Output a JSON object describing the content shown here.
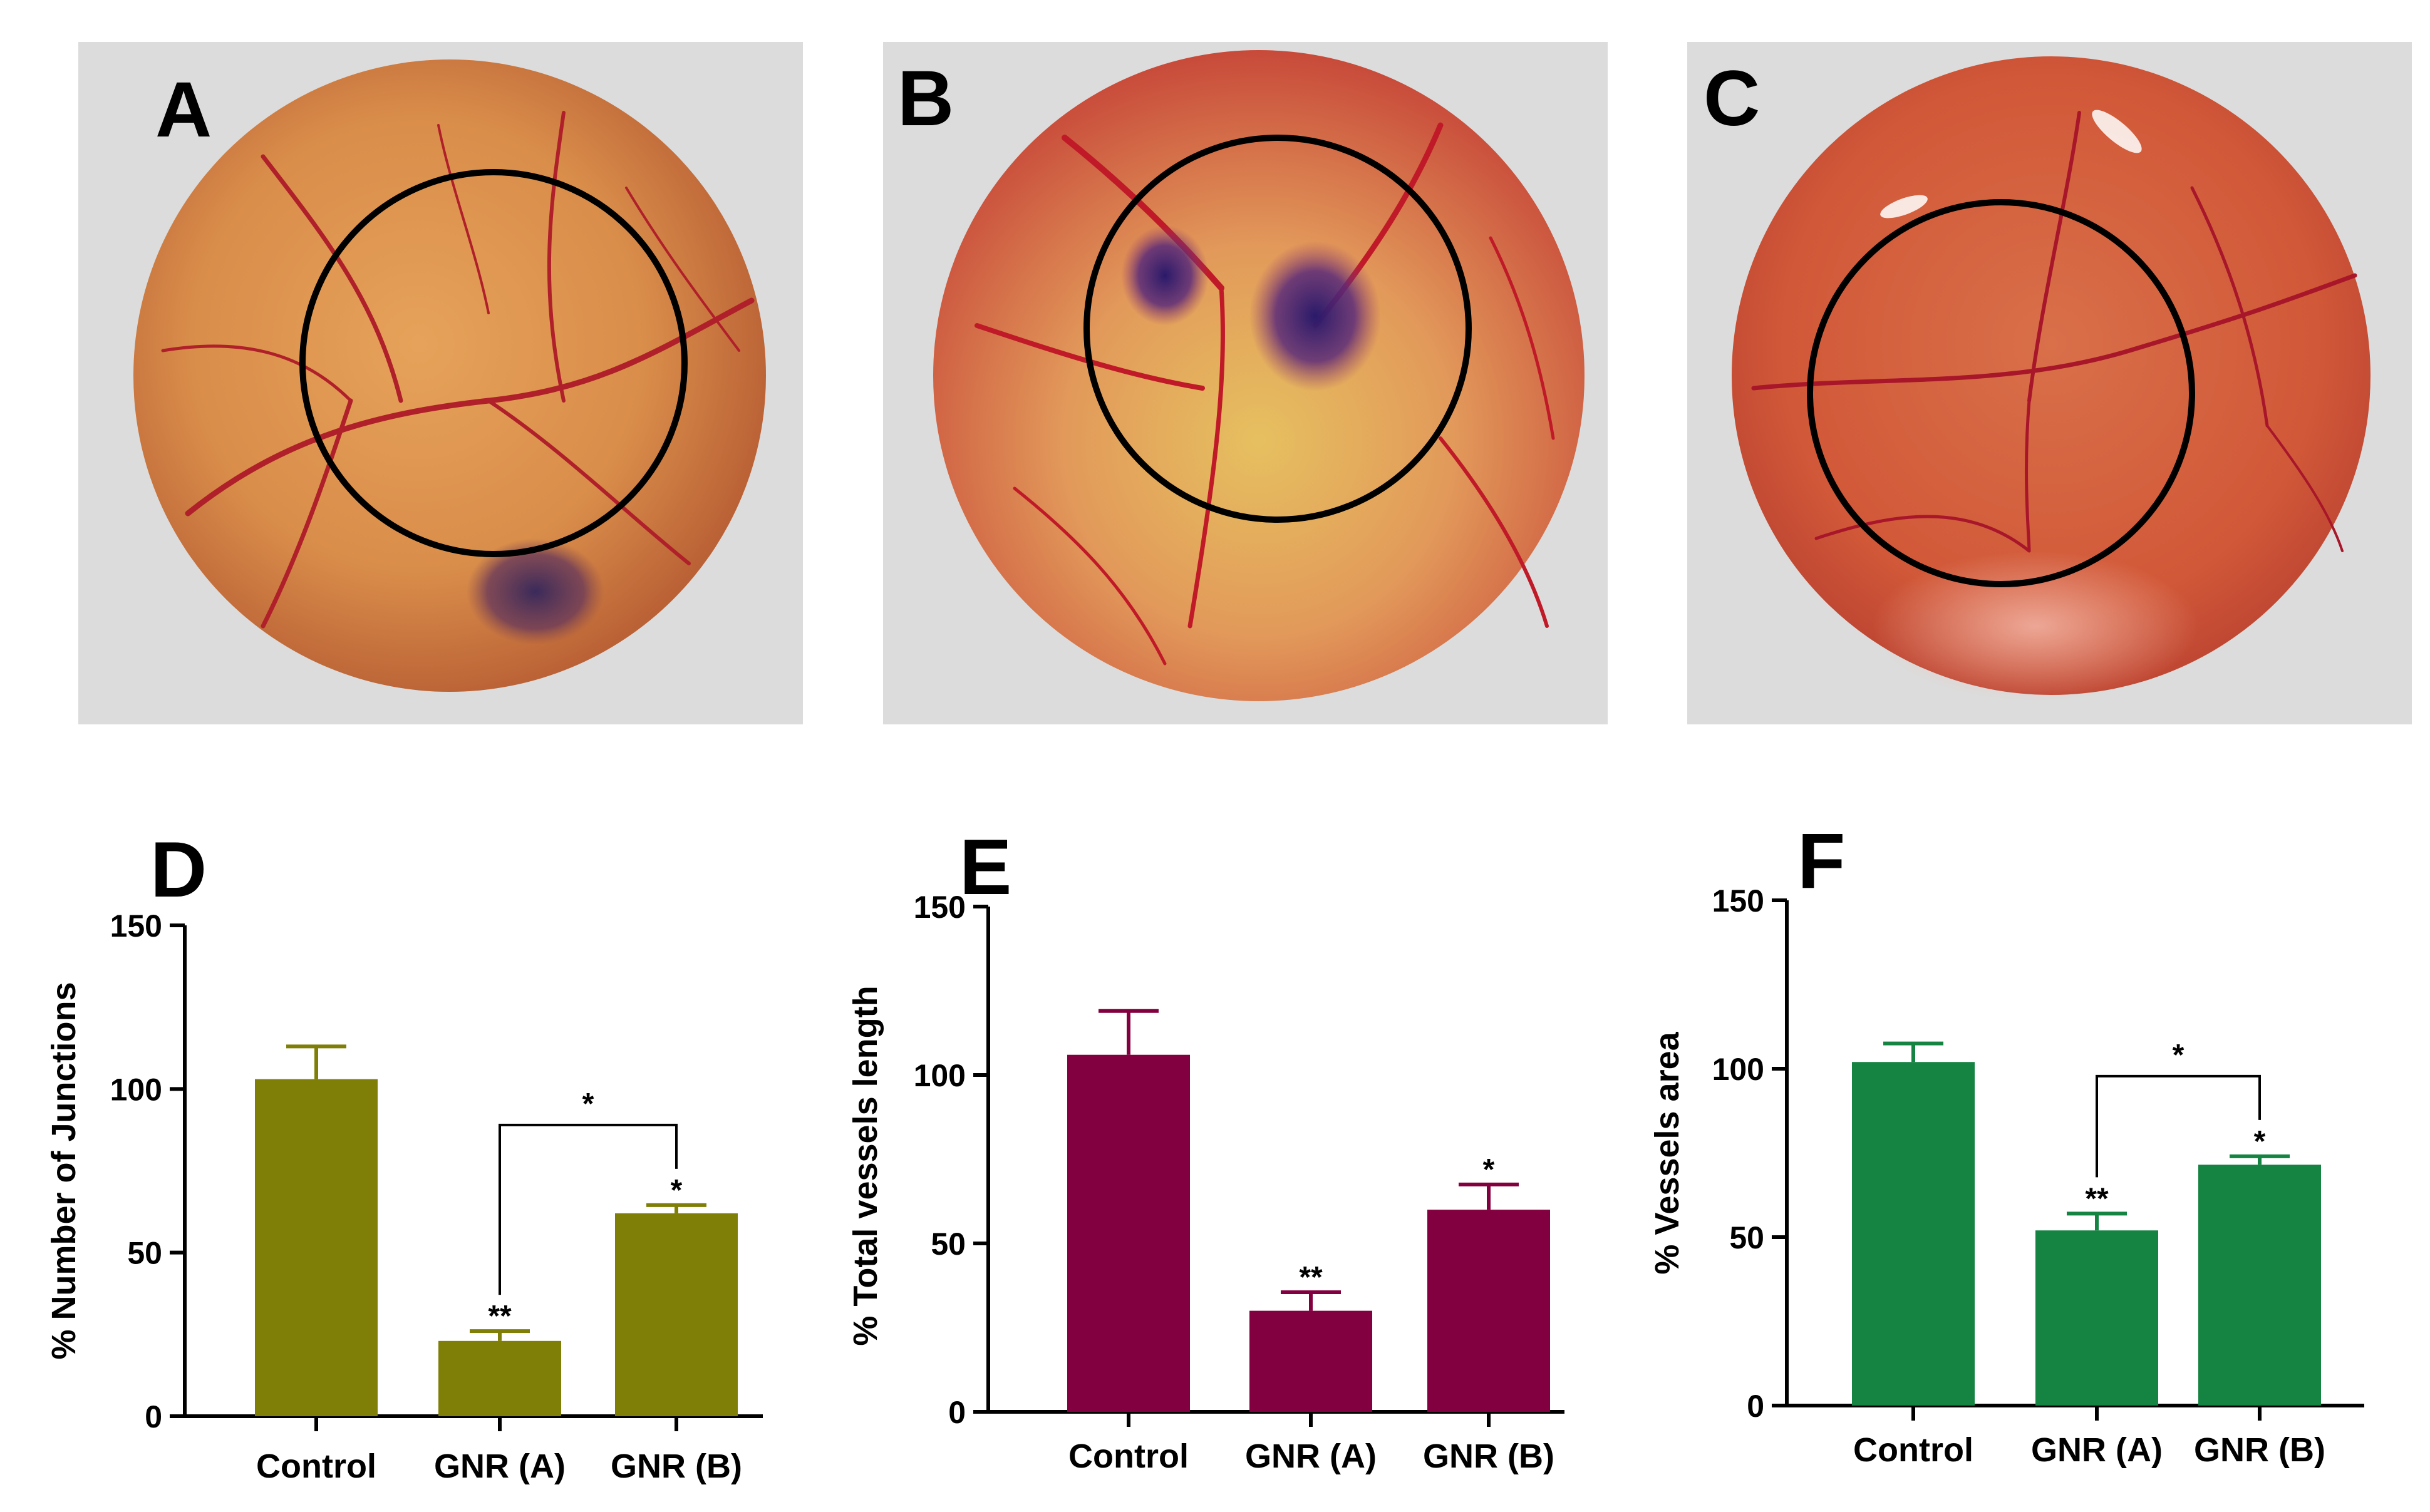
{
  "photos": [
    {
      "letter": "A"
    },
    {
      "letter": "B"
    },
    {
      "letter": "C"
    }
  ],
  "chart_data": [
    {
      "type": "bar",
      "panel": "D",
      "ylabel": "% Number of Junctions",
      "xlabel": "",
      "categories": [
        "Control",
        "GNR (A)",
        "GNR (B)"
      ],
      "values": [
        103,
        23,
        62
      ],
      "errors": [
        10,
        3,
        2.5
      ],
      "significance": [
        "",
        "**",
        "*"
      ],
      "bracket": {
        "from": 1,
        "to": 2,
        "label": "*"
      },
      "ylim": [
        0,
        150
      ],
      "yticks": [
        0,
        50,
        100,
        150
      ],
      "color": "#7f7f08"
    },
    {
      "type": "bar",
      "panel": "E",
      "ylabel": "% Total vessels length",
      "xlabel": "",
      "categories": [
        "Control",
        "GNR (A)",
        "GNR (B)"
      ],
      "values": [
        106,
        30,
        60
      ],
      "errors": [
        13,
        5.5,
        7.5
      ],
      "significance": [
        "",
        "**",
        "*"
      ],
      "bracket": null,
      "ylim": [
        0,
        150
      ],
      "yticks": [
        0,
        50,
        100,
        150
      ],
      "color": "#82003f"
    },
    {
      "type": "bar",
      "panel": "F",
      "ylabel": "% Vessels area",
      "xlabel": "",
      "categories": [
        "Control",
        "GNR (A)",
        "GNR (B)"
      ],
      "values": [
        102,
        52,
        71.5
      ],
      "errors": [
        5.5,
        5,
        2.5
      ],
      "significance": [
        "",
        "**",
        "*"
      ],
      "bracket": {
        "from": 1,
        "to": 2,
        "label": "*"
      },
      "ylim": [
        0,
        150
      ],
      "yticks": [
        0,
        50,
        100,
        150
      ],
      "color": "#158342"
    }
  ]
}
